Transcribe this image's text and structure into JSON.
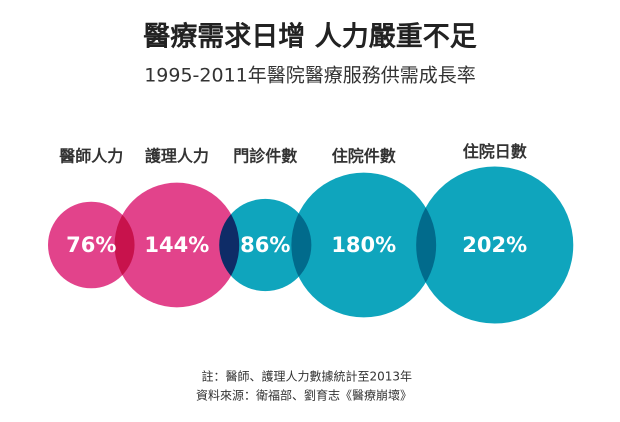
{
  "chart_data": {
    "type": "bubble",
    "title": "醫療需求日增 人力嚴重不足",
    "subtitle": "1995-2011年醫院醫療服務供需成長率",
    "categories": [
      "醫師人力",
      "護理人力",
      "門診件數",
      "住院件數",
      "住院日數"
    ],
    "values": [
      76,
      144,
      86,
      180,
      202
    ],
    "value_labels": [
      "76%",
      "144%",
      "86%",
      "180%",
      "202%"
    ],
    "colors": [
      "#e2438b",
      "#e2438b",
      "#0fa5bd",
      "#0fa5bd",
      "#0fa5bd"
    ],
    "notes": [
      "註：醫師、護理人力數據統計至2013年",
      "資料來源：衛福部、劉育志《醫療崩壞》"
    ]
  }
}
